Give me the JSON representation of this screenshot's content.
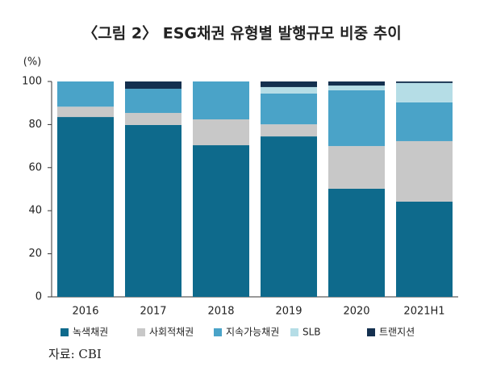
{
  "chart_data": {
    "type": "stacked_bar",
    "title": "〈그림 2〉 ESG채권 유형별 발행규모 비중 추이",
    "y_unit_label": "(%)",
    "source": "자료: CBI",
    "categories": [
      "2016",
      "2017",
      "2018",
      "2019",
      "2020",
      "2021H1"
    ],
    "series": [
      {
        "name": "녹색채권",
        "color": "#0e6a8c",
        "values": [
          83.5,
          79.8,
          70.4,
          74.5,
          50.2,
          44.2
        ]
      },
      {
        "name": "사회적채권",
        "color": "#c8c8c8",
        "values": [
          4.8,
          5.6,
          12,
          5.6,
          19.8,
          28.1
        ]
      },
      {
        "name": "지속가능채권",
        "color": "#4aa3c8",
        "values": [
          11.7,
          11.2,
          17.6,
          14.3,
          25.9,
          18
        ]
      },
      {
        "name": "SLB",
        "color": "#b5dde6",
        "values": [
          0,
          0,
          0,
          3,
          2.2,
          9
        ]
      },
      {
        "name": "트랜지션",
        "color": "#14304f",
        "values": [
          0,
          3.4,
          0,
          2.6,
          1.9,
          0.7
        ]
      }
    ],
    "ylim": [
      0,
      100
    ],
    "yticks": [
      0,
      20,
      40,
      60,
      80,
      100
    ],
    "grid": false,
    "legend": "bottom"
  }
}
